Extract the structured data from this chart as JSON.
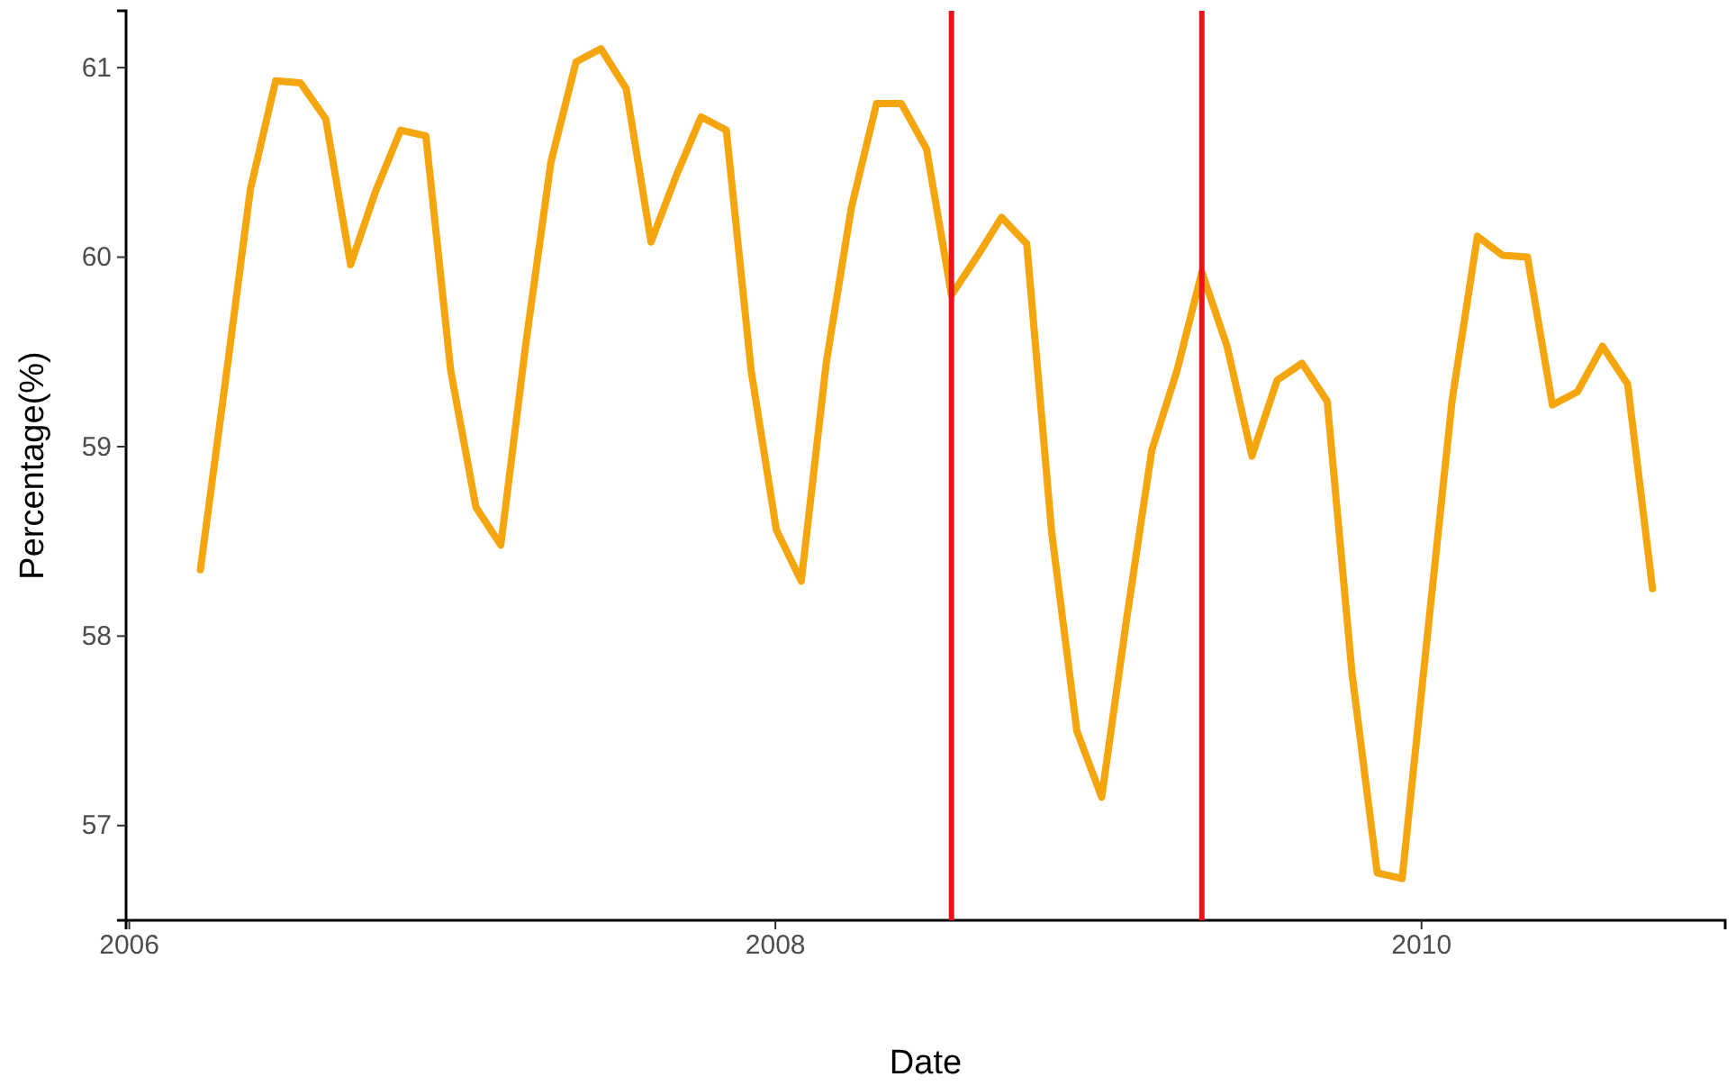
{
  "chart_data": {
    "type": "line",
    "xlabel": "Date",
    "ylabel": "Percentage(%)",
    "xlim": [
      2005.99,
      2010.94
    ],
    "xticks": [
      2006,
      2008,
      2010
    ],
    "ylim": [
      56.5,
      61.3
    ],
    "yticks": [
      57,
      58,
      59,
      60,
      61
    ],
    "grid": false,
    "marker": "none",
    "line_style": "solid",
    "series": [
      {
        "color": "#f5a50d",
        "x": [
          2006.22,
          2006.298,
          2006.375,
          2006.453,
          2006.53,
          2006.608,
          2006.685,
          2006.763,
          2006.84,
          2006.918,
          2006.995,
          2007.073,
          2007.15,
          2007.228,
          2007.305,
          2007.383,
          2007.46,
          2007.538,
          2007.615,
          2007.693,
          2007.77,
          2007.848,
          2007.925,
          2008.003,
          2008.08,
          2008.158,
          2008.235,
          2008.313,
          2008.39,
          2008.468,
          2008.545,
          2008.623,
          2008.7,
          2008.778,
          2008.855,
          2008.933,
          2009.01,
          2009.088,
          2009.165,
          2009.243,
          2009.32,
          2009.398,
          2009.475,
          2009.553,
          2009.63,
          2009.708,
          2009.785,
          2009.863,
          2009.94,
          2010.018,
          2010.095,
          2010.173,
          2010.25,
          2010.328,
          2010.405,
          2010.483,
          2010.56,
          2010.638,
          2010.715
        ],
        "values": [
          58.35,
          59.35,
          60.36,
          60.93,
          60.92,
          60.73,
          59.96,
          60.35,
          60.67,
          60.64,
          59.4,
          58.68,
          58.48,
          59.55,
          60.5,
          61.03,
          61.1,
          60.89,
          60.08,
          60.43,
          60.74,
          60.67,
          59.4,
          58.56,
          58.29,
          59.45,
          60.26,
          60.81,
          60.81,
          60.57,
          59.8,
          60.0,
          60.21,
          60.07,
          58.55,
          57.5,
          57.15,
          58.1,
          58.98,
          59.4,
          59.92,
          59.53,
          58.95,
          59.35,
          59.44,
          59.24,
          57.8,
          56.75,
          56.72,
          58.0,
          59.25,
          60.11,
          60.01,
          60.0,
          59.22,
          59.29,
          59.53,
          59.33,
          58.25
        ]
      }
    ],
    "ref_lines": [
      {
        "axis": "x",
        "value": 2008.545,
        "color": "#e8141c"
      },
      {
        "axis": "x",
        "value": 2009.32,
        "color": "#e8141c"
      }
    ]
  }
}
